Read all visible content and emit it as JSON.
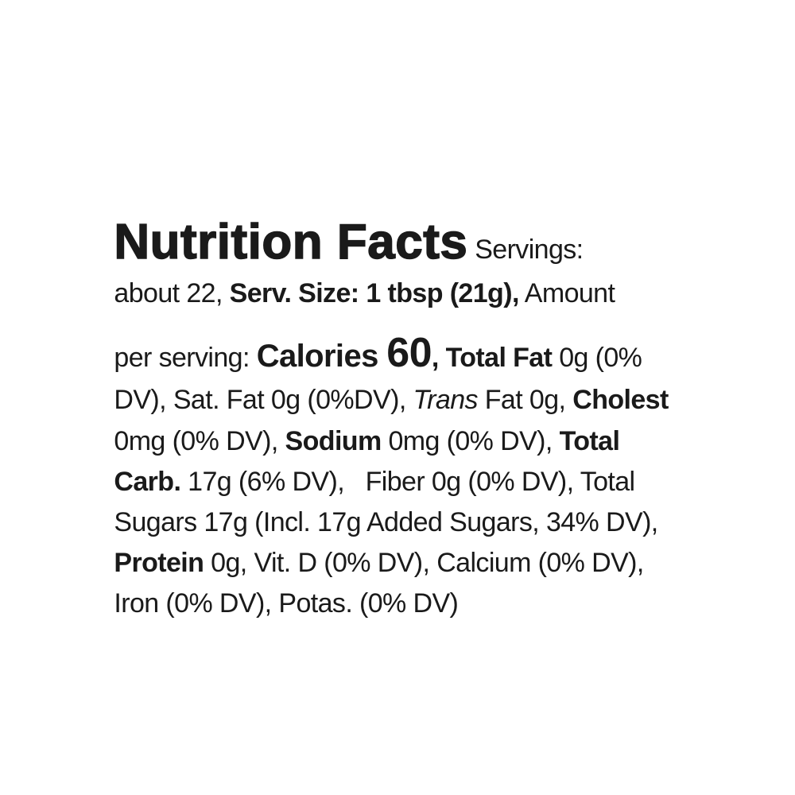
{
  "label": {
    "title": "Nutrition Facts",
    "lines": [
      [
        " Servings:"
      ],
      [
        "about 22, ",
        "Serv. Size: 1 tbsp (21g),",
        " Amount"
      ],
      [
        "per serving: ",
        "Calories ",
        "60",
        ", Total Fat",
        " 0g (0%"
      ],
      [
        "DV), Sat. Fat 0g (0%DV), ",
        "Trans",
        " Fat 0g, ",
        "Cholest"
      ],
      [
        "0mg (0% DV), ",
        "Sodium",
        " 0mg (0% DV), ",
        "Total"
      ],
      [
        "Carb.",
        " 17g (6% DV),   Fiber 0g (0% DV), Total"
      ],
      [
        "Sugars 17g (Incl. 17g Added Sugars, 34% DV),"
      ],
      [
        "Protein",
        " 0g, Vit. D (0% DV), Calcium (0% DV),"
      ],
      [
        "Iron (0% DV), Potas. (0% DV)"
      ]
    ]
  }
}
